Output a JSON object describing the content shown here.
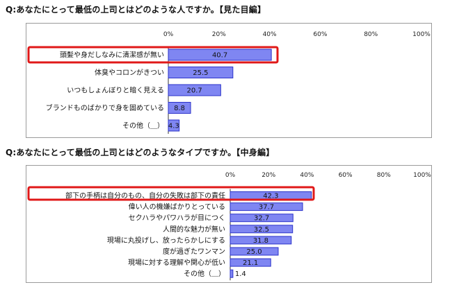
{
  "questions": {
    "q1": "Q:あなたにとって最低の上司とはどのような人ですか。【見た目編】",
    "q2": "Q:あなたにとって最低の上司とはどのようなタイプですか。【中身編】"
  },
  "colors": {
    "bar_fill": "#7f86f2",
    "bar_edge": "#2b33c9",
    "highlight_border": "#e01818"
  },
  "chart_data": [
    {
      "type": "bar",
      "orientation": "horizontal",
      "title": "Q:あなたにとって最低の上司とはどのような人ですか。【見た目編】",
      "categories": [
        "頭髪や身だしなみに清潔感が無い",
        "体臭やコロンがきつい",
        "いつもしょんぼりと暗く見える",
        "ブランドものばかりで身を固めている",
        "その他（＿）"
      ],
      "values": [
        40.7,
        25.5,
        20.7,
        8.8,
        4.3
      ],
      "value_labels": [
        "40.7",
        "25.5",
        "20.7",
        "8.8",
        "4.3"
      ],
      "xlim": [
        0,
        100
      ],
      "ticks": [
        "0%",
        "20%",
        "40%",
        "60%",
        "80%",
        "100%"
      ],
      "highlighted_category": "頭髪や身だしなみに清潔感が無い",
      "grid": false
    },
    {
      "type": "bar",
      "orientation": "horizontal",
      "title": "Q:あなたにとって最低の上司とはどのようなタイプですか。【中身編】",
      "categories": [
        "部下の手柄は自分のもの、自分の失敗は部下の責任",
        "偉い人の機嫌ばかりとっている",
        "セクハラやパワハラが目につく",
        "人間的な魅力が無い",
        "現場に丸投げし、放ったらかしにする",
        "度が過ぎたワンマン",
        "現場に対する理解や関心が低い",
        "その他（＿）"
      ],
      "values": [
        42.3,
        37.7,
        32.7,
        32.5,
        31.8,
        25.0,
        21.1,
        1.4
      ],
      "value_labels": [
        "42.3",
        "37.7",
        "32.7",
        "32.5",
        "31.8",
        "25.0",
        "21.1",
        "1.4"
      ],
      "xlim": [
        0,
        100
      ],
      "ticks": [
        "0%",
        "20%",
        "40%",
        "60%",
        "80%",
        "100%"
      ],
      "highlighted_category": "部下の手柄は自分のもの、自分の失敗は部下の責任",
      "grid": false
    }
  ]
}
